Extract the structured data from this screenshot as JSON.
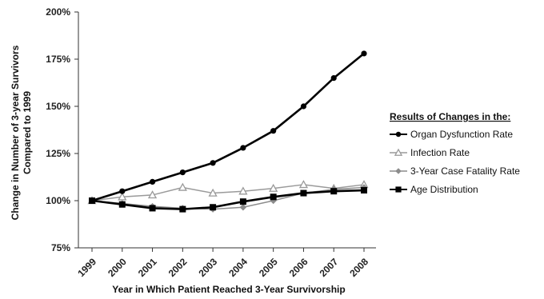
{
  "chart_data": {
    "type": "line",
    "x": [
      "1999",
      "2000",
      "2001",
      "2002",
      "2003",
      "2004",
      "2005",
      "2006",
      "2007",
      "2008"
    ],
    "xlabel": "Year in Which Patient Reached 3-Year Survivorship",
    "ylabel_lines": [
      "Change in Number of 3-year Survivors",
      "Compared to 1999"
    ],
    "ylim": [
      75,
      200
    ],
    "yticks": [
      75,
      100,
      125,
      150,
      175,
      200
    ],
    "ytick_labels": [
      "75%",
      "100%",
      "125%",
      "150%",
      "175%",
      "200%"
    ],
    "grid": false,
    "legend_title": "Results of Changes in the:",
    "legend_position": "right",
    "series": [
      {
        "name": "Organ Dysfunction Rate",
        "color": "#000000",
        "marker": "circle",
        "line_width": 2.6,
        "values": [
          100,
          105,
          110,
          115,
          120,
          128,
          137,
          150,
          165,
          178
        ]
      },
      {
        "name": "Infection Rate",
        "color": "#9a9a9a",
        "marker": "triangle-open",
        "line_width": 1.5,
        "values": [
          100,
          102,
          103,
          107,
          104,
          105,
          106.5,
          108.5,
          106.5,
          108.5
        ]
      },
      {
        "name": "3-Year Case Fatality Rate",
        "color": "#8c8c8c",
        "marker": "diamond",
        "line_width": 1.5,
        "values": [
          100,
          98.5,
          97,
          96,
          95.5,
          96.5,
          100,
          104,
          106,
          107
        ]
      },
      {
        "name": "Age Distribution",
        "color": "#000000",
        "marker": "square",
        "line_width": 2.6,
        "values": [
          100,
          98,
          96,
          95.5,
          96.5,
          99.5,
          102,
          104,
          105,
          105.5
        ]
      }
    ]
  }
}
